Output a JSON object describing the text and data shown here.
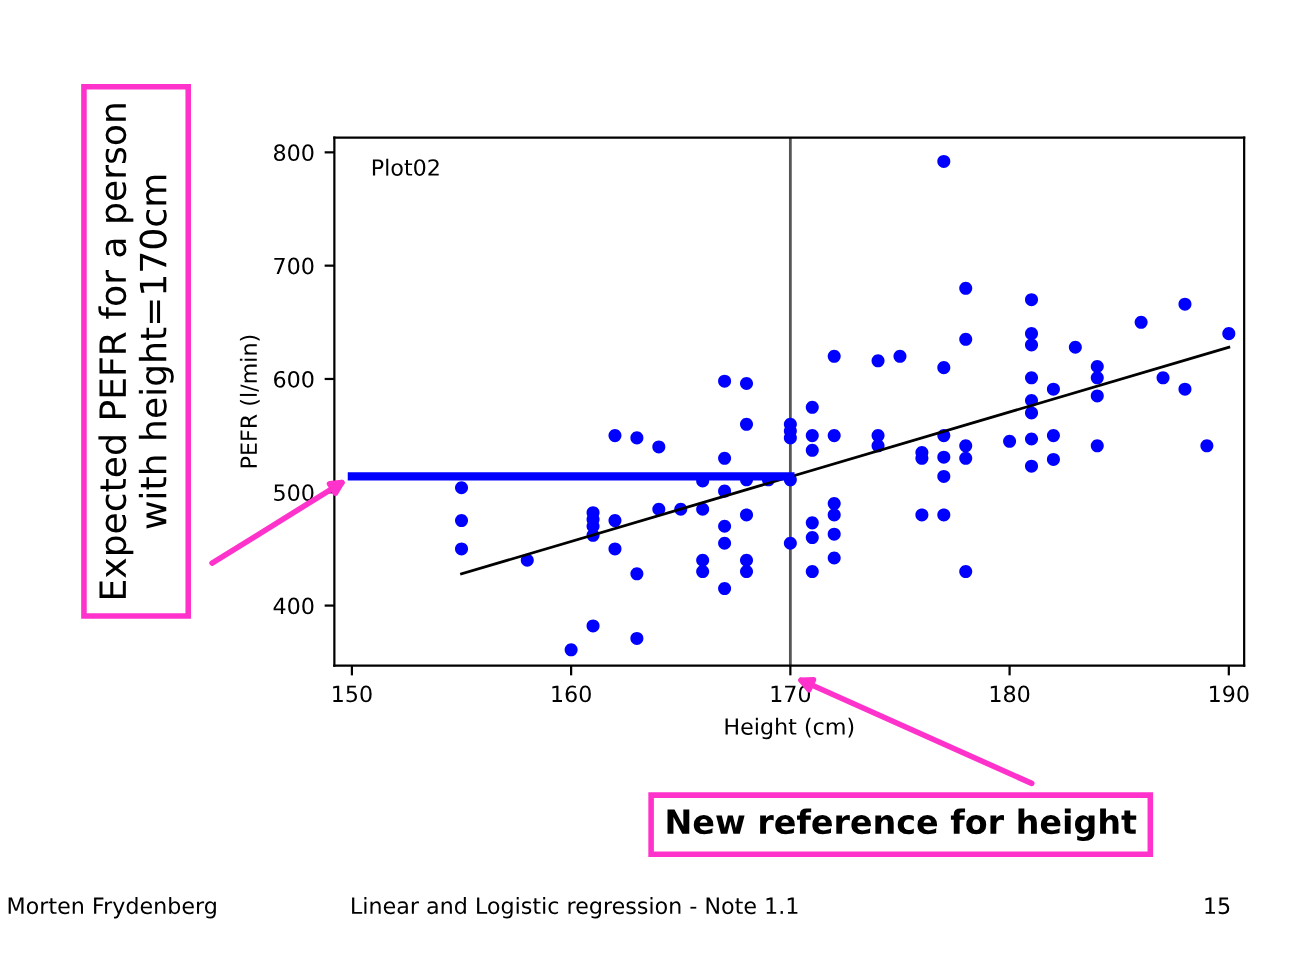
{
  "chart_data": {
    "type": "scatter",
    "xlabel": "Height (cm)",
    "ylabel": "PEFR (l/min)",
    "xlim": [
      149.2,
      190.7
    ],
    "ylim": [
      347,
      813
    ],
    "xticks": [
      150,
      160,
      170,
      180,
      190
    ],
    "yticks": [
      400,
      500,
      600,
      700,
      800
    ],
    "grid": false,
    "legend": false,
    "series": [
      {
        "marker": "circle",
        "color": "#0000ff",
        "x": [
          155,
          155,
          155,
          158,
          160,
          161,
          161,
          161,
          161,
          161,
          162,
          162,
          162,
          163,
          163,
          163,
          164,
          164,
          165,
          166,
          166,
          166,
          166,
          167,
          167,
          167,
          167,
          167,
          167,
          168,
          168,
          168,
          168,
          168,
          168,
          169,
          170,
          170,
          170,
          170,
          170,
          171,
          171,
          171,
          171,
          171,
          171,
          172,
          172,
          172,
          172,
          172,
          172,
          174,
          174,
          174,
          175,
          176,
          176,
          176,
          177,
          177,
          177,
          177,
          177,
          177,
          178,
          178,
          178,
          178,
          178,
          180,
          181,
          181,
          181,
          181,
          181,
          181,
          181,
          181,
          182,
          182,
          182,
          183,
          184,
          184,
          184,
          184,
          186,
          187,
          188,
          188,
          189,
          190
        ],
        "values": [
          504,
          475,
          450,
          440,
          361,
          482,
          476,
          470,
          462,
          382,
          550,
          475,
          450,
          548,
          428,
          371,
          540,
          485,
          485,
          510,
          485,
          440,
          430,
          598,
          530,
          501,
          470,
          455,
          415,
          596,
          560,
          511,
          480,
          440,
          430,
          511,
          560,
          554,
          548,
          511,
          455,
          575,
          550,
          537,
          473,
          460,
          430,
          620,
          550,
          490,
          480,
          463,
          442,
          616,
          550,
          541,
          620,
          535,
          530,
          480,
          792,
          610,
          550,
          531,
          514,
          480,
          680,
          635,
          541,
          530,
          430,
          545,
          670,
          640,
          630,
          601,
          581,
          570,
          547,
          523,
          591,
          550,
          529,
          628,
          611,
          601,
          585,
          541,
          650,
          601,
          666,
          591,
          541,
          640
        ]
      },
      {
        "type": "line",
        "marker": "none",
        "color": "#000000",
        "x": [
          155,
          190
        ],
        "values": [
          428,
          628
        ]
      },
      {
        "type": "line",
        "marker": "none",
        "color": "#0000ff",
        "x": [
          150,
          170
        ],
        "values": [
          514,
          514
        ]
      }
    ],
    "ref_lines": [
      {
        "axis": "x",
        "value": 170,
        "color": "#555555"
      }
    ],
    "annotations": [
      "Plot02",
      {
        "text": "Expected PEFR for a person\nwith height=170cm",
        "x": 150,
        "y": 514
      },
      "New reference for height",
      "Morten Frydenberg",
      "Linear and Logistic regression - Note 1.1",
      "15"
    ]
  }
}
